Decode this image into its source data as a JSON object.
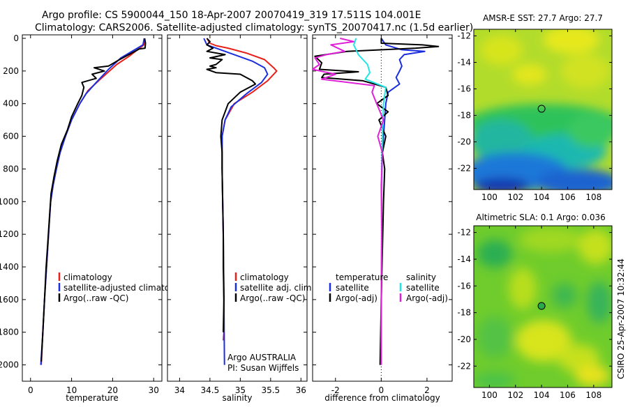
{
  "header": {
    "line1": "Argo profile: CS 5900044_150 18-Apr-2007 20070419_319 17.511S 104.001E",
    "line2": "Climatology: CARS2006. Satellite-adjusted climatology: synTS_20070417.nc (1.5d earlier)"
  },
  "side_label": "CSIRO 25-Apr-2007 10:32:44",
  "colors": {
    "red": "#e8201a",
    "blue": "#1a2ee0",
    "black": "#000000",
    "cyan": "#22e6e6",
    "magenta": "#e020d8"
  },
  "chart_data": [
    {
      "type": "line",
      "id": "temp",
      "xlabel": "temperature",
      "xlim": [
        -2,
        32
      ],
      "ylim": [
        0,
        2100
      ],
      "xticks": [
        "0",
        "10",
        "20",
        "30"
      ],
      "xtick_vals": [
        0,
        10,
        20,
        30
      ],
      "yticks": [
        "0",
        "200",
        "400",
        "600",
        "800",
        "1000",
        "1200",
        "1400",
        "1600",
        "1800",
        "2000"
      ],
      "ytick_vals": [
        0,
        200,
        400,
        600,
        800,
        1000,
        1200,
        1400,
        1600,
        1800,
        2000
      ],
      "legend": [
        "climatology",
        "satellite-adjusted climatolog",
        "Argo(..raw -QC)"
      ],
      "series": [
        {
          "name": "climatology",
          "color": "red",
          "points": [
            [
              27.8,
              0
            ],
            [
              27.6,
              40
            ],
            [
              24,
              110
            ],
            [
              21,
              160
            ],
            [
              17,
              250
            ],
            [
              14,
              320
            ],
            [
              12,
              400
            ],
            [
              10,
              500
            ],
            [
              8.5,
              600
            ],
            [
              7.2,
              700
            ],
            [
              6.3,
              800
            ],
            [
              5.5,
              900
            ],
            [
              4.9,
              1000
            ],
            [
              4.4,
              1200
            ],
            [
              3.9,
              1400
            ],
            [
              3.4,
              1600
            ],
            [
              3,
              1800
            ],
            [
              2.6,
              2000
            ]
          ]
        },
        {
          "name": "satellite-adjusted climatology",
          "color": "blue",
          "points": [
            [
              27.7,
              0
            ],
            [
              27.4,
              40
            ],
            [
              22,
              120
            ],
            [
              19,
              190
            ],
            [
              16,
              270
            ],
            [
              13.5,
              340
            ],
            [
              12,
              400
            ],
            [
              10,
              500
            ],
            [
              8.5,
              600
            ],
            [
              7.2,
              700
            ],
            [
              6.3,
              800
            ],
            [
              5.5,
              900
            ],
            [
              4.9,
              1000
            ],
            [
              4.4,
              1200
            ],
            [
              3.9,
              1400
            ],
            [
              3.4,
              1600
            ],
            [
              3,
              1800
            ],
            [
              2.5,
              2000
            ]
          ]
        },
        {
          "name": "Argo(..raw -QC)",
          "color": "black",
          "points": [
            [
              27.8,
              0
            ],
            [
              28,
              30
            ],
            [
              27.9,
              60
            ],
            [
              26.5,
              65
            ],
            [
              21,
              140
            ],
            [
              19,
              170
            ],
            [
              15.5,
              180
            ],
            [
              18,
              200
            ],
            [
              15,
              220
            ],
            [
              16,
              245
            ],
            [
              12.5,
              270
            ],
            [
              13,
              300
            ],
            [
              12.5,
              350
            ],
            [
              11.5,
              400
            ],
            [
              10,
              480
            ],
            [
              9,
              560
            ],
            [
              7.5,
              650
            ],
            [
              6.5,
              750
            ],
            [
              5.7,
              850
            ],
            [
              5,
              950
            ],
            [
              4.6,
              1100
            ],
            [
              4.2,
              1250
            ],
            [
              3.8,
              1400
            ],
            [
              3.4,
              1600
            ],
            [
              3,
              1800
            ],
            [
              2.6,
              1980
            ]
          ]
        }
      ]
    },
    {
      "type": "line",
      "id": "sal",
      "xlabel": "salinity",
      "xlim": [
        33.8,
        36.1
      ],
      "ylim": [
        0,
        2100
      ],
      "xticks": [
        "34",
        "34.5",
        "35",
        "35.5",
        "36"
      ],
      "xtick_vals": [
        34,
        34.5,
        35,
        35.5,
        36
      ],
      "legend": [
        "climatology",
        "satellite adj. clim.",
        "Argo(..raw -QC)"
      ],
      "annotation": [
        "Argo AUSTRALIA",
        "PI: Susan Wijffels"
      ],
      "series": [
        {
          "name": "climatology",
          "color": "red",
          "points": [
            [
              34.45,
              0
            ],
            [
              34.5,
              30
            ],
            [
              34.6,
              45
            ],
            [
              34.8,
              60
            ],
            [
              35.1,
              90
            ],
            [
              35.4,
              130
            ],
            [
              35.55,
              180
            ],
            [
              35.6,
              200
            ],
            [
              35.45,
              260
            ],
            [
              35.2,
              330
            ],
            [
              34.9,
              400
            ],
            [
              34.75,
              500
            ],
            [
              34.7,
              600
            ],
            [
              34.7,
              800
            ],
            [
              34.72,
              1200
            ],
            [
              34.73,
              1600
            ],
            [
              34.73,
              1800
            ],
            [
              34.72,
              1850
            ]
          ]
        },
        {
          "name": "satellite adj. clim.",
          "color": "blue",
          "points": [
            [
              34.4,
              0
            ],
            [
              34.45,
              40
            ],
            [
              34.6,
              60
            ],
            [
              34.9,
              100
            ],
            [
              35.2,
              140
            ],
            [
              35.4,
              180
            ],
            [
              35.45,
              220
            ],
            [
              35.35,
              270
            ],
            [
              35.1,
              340
            ],
            [
              34.85,
              420
            ],
            [
              34.75,
              500
            ],
            [
              34.7,
              600
            ],
            [
              34.7,
              800
            ],
            [
              34.72,
              1200
            ],
            [
              34.73,
              1600
            ],
            [
              34.74,
              2000
            ]
          ]
        },
        {
          "name": "Argo(..raw -QC)",
          "color": "black",
          "points": [
            [
              34.45,
              0
            ],
            [
              34.5,
              20
            ],
            [
              34.45,
              40
            ],
            [
              34.55,
              60
            ],
            [
              34.45,
              80
            ],
            [
              34.75,
              100
            ],
            [
              34.5,
              120
            ],
            [
              34.7,
              130
            ],
            [
              34.6,
              160
            ],
            [
              34.5,
              170
            ],
            [
              34.6,
              180
            ],
            [
              34.45,
              190
            ],
            [
              34.6,
              210
            ],
            [
              35,
              220
            ],
            [
              35.2,
              260
            ],
            [
              35.25,
              280
            ],
            [
              35,
              330
            ],
            [
              34.8,
              400
            ],
            [
              34.7,
              500
            ],
            [
              34.68,
              600
            ],
            [
              34.7,
              700
            ],
            [
              34.7,
              800
            ],
            [
              34.71,
              1000
            ],
            [
              34.72,
              1200
            ],
            [
              34.72,
              1400
            ],
            [
              34.73,
              1600
            ],
            [
              34.72,
              1800
            ]
          ]
        }
      ]
    },
    {
      "type": "line",
      "id": "diff",
      "xlabel": "difference from climatology",
      "xlim": [
        -3,
        3.1
      ],
      "ylim": [
        0,
        2100
      ],
      "xticks": [
        "-2",
        "0",
        "2"
      ],
      "xtick_vals": [
        -2,
        0,
        2
      ],
      "legend_temperature": [
        "temperature",
        "satellite",
        "Argo(-adj)"
      ],
      "legend_salinity": [
        "salinity",
        "satellite",
        "Argo(-adj)"
      ],
      "series": [
        {
          "name": "temperature satellite",
          "color": "blue",
          "points": [
            [
              0,
              0
            ],
            [
              0.2,
              40
            ],
            [
              0.9,
              70
            ],
            [
              1.9,
              80
            ],
            [
              1.0,
              100
            ],
            [
              0.8,
              130
            ],
            [
              0.9,
              170
            ],
            [
              0.8,
              200
            ],
            [
              0.65,
              240
            ],
            [
              0.8,
              280
            ],
            [
              0.3,
              330
            ],
            [
              0.2,
              400
            ],
            [
              0.15,
              500
            ],
            [
              0.1,
              600
            ],
            [
              0.05,
              700
            ],
            [
              0.03,
              800
            ],
            [
              0.02,
              1000
            ],
            [
              0.02,
              1200
            ],
            [
              0.01,
              1500
            ],
            [
              0,
              1800
            ]
          ]
        },
        {
          "name": "temperature Argo(-adj)",
          "color": "black",
          "points": [
            [
              0,
              0
            ],
            [
              0,
              30
            ],
            [
              1.8,
              40
            ],
            [
              2.5,
              50
            ],
            [
              1.5,
              60
            ],
            [
              -1.5,
              80
            ],
            [
              -2.9,
              110
            ],
            [
              -2.6,
              150
            ],
            [
              -2.7,
              190
            ],
            [
              -1,
              205
            ],
            [
              -2.5,
              220
            ],
            [
              -2.6,
              240
            ],
            [
              -0.8,
              260
            ],
            [
              -0.3,
              280
            ],
            [
              0.2,
              300
            ],
            [
              0.3,
              350
            ],
            [
              -0.2,
              400
            ],
            [
              0.3,
              450
            ],
            [
              -0.1,
              500
            ],
            [
              0.2,
              600
            ],
            [
              0.05,
              700
            ],
            [
              0.15,
              800
            ],
            [
              0.1,
              1000
            ],
            [
              0.05,
              1300
            ],
            [
              0,
              1600
            ],
            [
              -0.05,
              2000
            ]
          ]
        },
        {
          "name": "salinity satellite",
          "color": "cyan",
          "points": [
            [
              -1.1,
              0
            ],
            [
              -1.2,
              40
            ],
            [
              -1.0,
              100
            ],
            [
              -0.6,
              160
            ],
            [
              -0.5,
              210
            ],
            [
              -0.7,
              250
            ],
            [
              0.2,
              300
            ],
            [
              0.1,
              400
            ],
            [
              0.05,
              600
            ],
            [
              0.02,
              800
            ],
            [
              0.02,
              1200
            ],
            [
              0,
              1600
            ],
            [
              0,
              2000
            ]
          ]
        },
        {
          "name": "salinity Argo(-adj)",
          "color": "magenta",
          "points": [
            [
              -1.8,
              0
            ],
            [
              -1.2,
              20
            ],
            [
              -2.2,
              40
            ],
            [
              -1.6,
              80
            ],
            [
              -2.4,
              100
            ],
            [
              -2.9,
              120
            ],
            [
              -2.7,
              160
            ],
            [
              -3,
              190
            ],
            [
              -2.0,
              220
            ],
            [
              -2.6,
              250
            ],
            [
              -0.3,
              290
            ],
            [
              -0.4,
              330
            ],
            [
              -0.2,
              400
            ],
            [
              0.1,
              500
            ],
            [
              -0.15,
              600
            ],
            [
              0.05,
              700
            ],
            [
              0,
              900
            ],
            [
              0.02,
              1200
            ],
            [
              0,
              1600
            ],
            [
              0,
              2000
            ]
          ]
        }
      ]
    },
    {
      "type": "heatmap",
      "id": "sst",
      "title": "AMSR-E SST: 27.7 Argo: 27.7",
      "xlim": [
        98.8,
        109.4
      ],
      "ylim": [
        -23.6,
        -11.5
      ],
      "xticks": [
        "100",
        "102",
        "104",
        "106",
        "108"
      ],
      "xtick_vals": [
        100,
        102,
        104,
        106,
        108
      ],
      "yticks": [
        "-12",
        "-14",
        "-16",
        "-18",
        "-20",
        "-22"
      ],
      "ytick_vals": [
        -12,
        -14,
        -16,
        -18,
        -20,
        -22
      ],
      "marker": [
        104,
        -17.5
      ]
    },
    {
      "type": "heatmap",
      "id": "sla",
      "title": "Altimetric SLA: 0.1 Argo: 0.036",
      "xlim": [
        98.8,
        109.4
      ],
      "ylim": [
        -23.6,
        -11.5
      ],
      "xticks": [
        "100",
        "102",
        "104",
        "106",
        "108"
      ],
      "xtick_vals": [
        100,
        102,
        104,
        106,
        108
      ],
      "yticks": [
        "-12",
        "-14",
        "-16",
        "-18",
        "-20",
        "-22"
      ],
      "ytick_vals": [
        -12,
        -14,
        -16,
        -18,
        -20,
        -22
      ],
      "marker": [
        104,
        -17.5
      ]
    }
  ]
}
